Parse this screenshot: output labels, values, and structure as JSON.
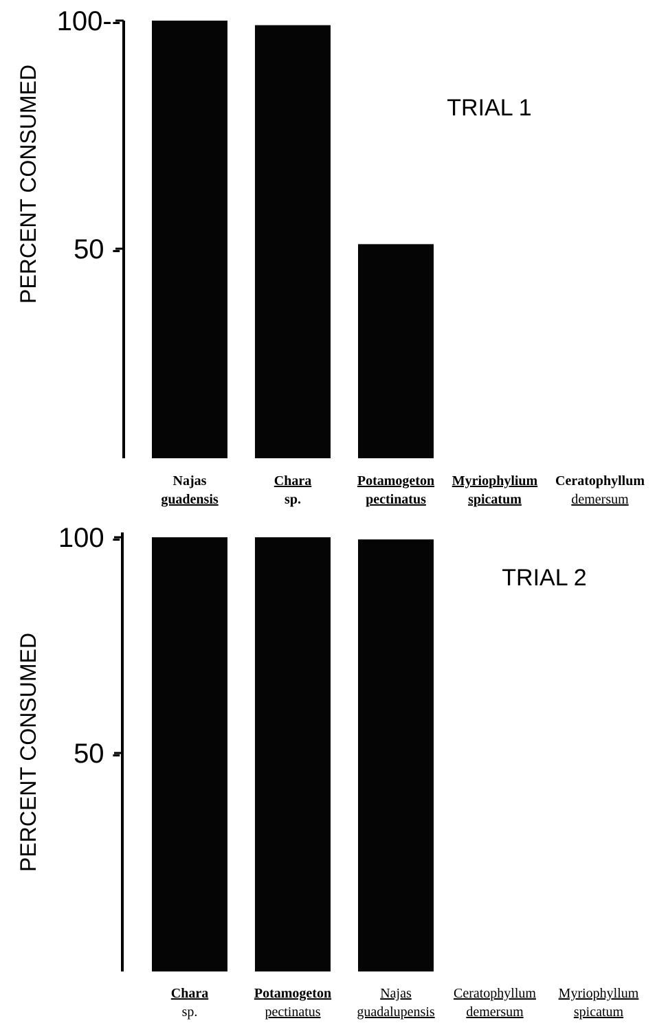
{
  "chart_data": [
    {
      "type": "bar",
      "title": "TRIAL 1",
      "ylabel": "PERCENT CONSUMED",
      "ylim": [
        0,
        100
      ],
      "yticks": [
        {
          "value": 100,
          "label": "100--"
        },
        {
          "value": 50,
          "label": "50 -"
        }
      ],
      "categories": [
        {
          "line1": "Najas",
          "line2": "guadensis"
        },
        {
          "line1": "Chara",
          "line2": "sp."
        },
        {
          "line1": "Potamogeton",
          "line2": "pectinatus"
        },
        {
          "line1": "Myriophylium",
          "line2": "spicatum"
        },
        {
          "line1": "Ceratophyllum",
          "line2": "demersum"
        }
      ],
      "values": [
        100,
        99,
        51,
        0,
        0
      ],
      "bar_color": "#050505",
      "grid": false,
      "legend": "none"
    },
    {
      "type": "bar",
      "title": "TRIAL 2",
      "ylabel": "PERCENT CONSUMED",
      "ylim": [
        0,
        100
      ],
      "yticks": [
        {
          "value": 100,
          "label": "100 -"
        },
        {
          "value": 50,
          "label": "50 -"
        }
      ],
      "categories": [
        {
          "line1": "Chara",
          "line2": "sp."
        },
        {
          "line1": "Potamogeton",
          "line2": "pectinatus"
        },
        {
          "line1": "Najas",
          "line2": "guadalupensis"
        },
        {
          "line1": "Ceratophyllum",
          "line2": "demersum"
        },
        {
          "line1": "Myriophyllum",
          "line2": "spicatum"
        }
      ],
      "values": [
        100,
        100,
        99.5,
        0,
        0
      ],
      "bar_color": "#050505",
      "grid": false,
      "legend": "none"
    }
  ]
}
